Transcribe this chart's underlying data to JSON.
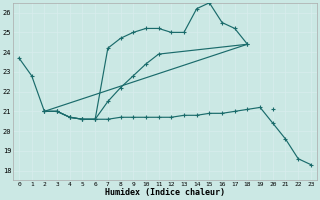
{
  "xlabel": "Humidex (Indice chaleur)",
  "xlim": [
    -0.5,
    23.5
  ],
  "ylim": [
    17.5,
    26.5
  ],
  "xticks": [
    0,
    1,
    2,
    3,
    4,
    5,
    6,
    7,
    8,
    9,
    10,
    11,
    12,
    13,
    14,
    15,
    16,
    17,
    18,
    19,
    20,
    21,
    22,
    23
  ],
  "yticks": [
    18,
    19,
    20,
    21,
    22,
    23,
    24,
    25,
    26
  ],
  "bg_color": "#cbe8e4",
  "line_color": "#1a6b6b",
  "grid_color": "#d8eded",
  "curve_top_x": [
    0,
    1,
    2,
    3,
    4,
    5,
    6,
    7,
    8,
    9,
    10,
    11,
    12,
    13,
    14,
    15,
    16,
    17,
    18
  ],
  "curve_top_y": [
    23.7,
    22.8,
    21.0,
    21.0,
    20.7,
    20.6,
    20.6,
    24.2,
    24.7,
    25.0,
    25.2,
    25.2,
    25.0,
    25.0,
    26.2,
    26.5,
    25.5,
    25.2,
    24.4
  ],
  "curve_mid_x": [
    2,
    3,
    4,
    5,
    6,
    7,
    8,
    9,
    10,
    11,
    18
  ],
  "curve_mid_y": [
    21.0,
    21.0,
    20.7,
    20.6,
    20.6,
    21.5,
    22.2,
    22.8,
    23.4,
    23.9,
    24.4
  ],
  "curve_flat_x": [
    2,
    3,
    4,
    5,
    6,
    19,
    20
  ],
  "curve_flat_y": [
    21.0,
    21.0,
    20.7,
    20.6,
    20.6,
    21.1,
    21.1
  ],
  "curve_bot_x": [
    2,
    3,
    4,
    5,
    6,
    7,
    8,
    9,
    10,
    11,
    12,
    13,
    14,
    15,
    16,
    17,
    18,
    19,
    20,
    21,
    22,
    23
  ],
  "curve_bot_y": [
    21.0,
    21.0,
    20.7,
    20.6,
    20.6,
    20.6,
    20.7,
    20.7,
    20.7,
    20.7,
    20.7,
    20.8,
    20.8,
    20.9,
    20.9,
    21.0,
    21.1,
    21.2,
    20.4,
    19.6,
    18.6,
    18.3
  ]
}
